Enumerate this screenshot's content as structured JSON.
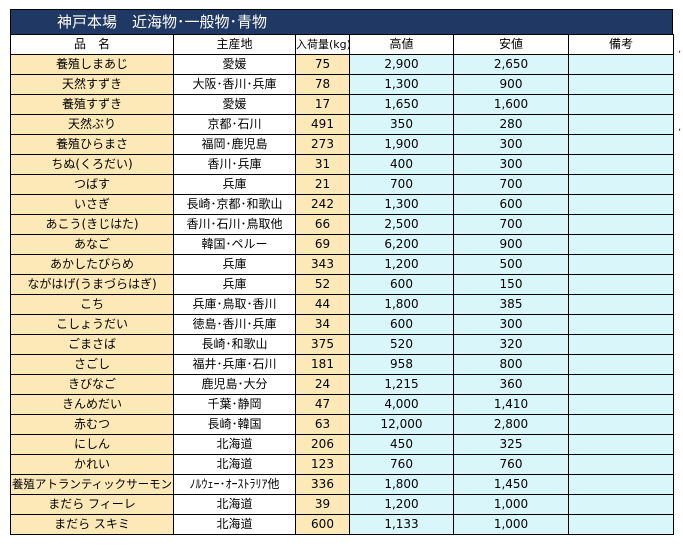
{
  "title": "神戸本場　近海物･一般物･青物",
  "headers": {
    "name": "品　名",
    "origin": "主産地",
    "qty": "入荷量(kg)",
    "high": "高値",
    "low": "安値",
    "note": "備考"
  },
  "rows": [
    {
      "name": "養殖しまあじ",
      "origin": "愛媛",
      "qty": "75",
      "high": "2,900",
      "low": "2,650",
      "note": ""
    },
    {
      "name": "天然すずき",
      "origin": "大阪･香川･兵庫",
      "qty": "78",
      "high": "1,300",
      "low": "900",
      "note": ""
    },
    {
      "name": "養殖すずき",
      "origin": "愛媛",
      "qty": "17",
      "high": "1,650",
      "low": "1,600",
      "note": ""
    },
    {
      "name": "天然ぶり",
      "origin": "京都･石川",
      "qty": "491",
      "high": "350",
      "low": "280",
      "note": ""
    },
    {
      "name": "養殖ひらまさ",
      "origin": "福岡･鹿児島",
      "qty": "273",
      "high": "1,900",
      "low": "300",
      "note": ""
    },
    {
      "name": "ちぬ(くろだい)",
      "origin": "香川･兵庫",
      "qty": "31",
      "high": "400",
      "low": "300",
      "note": ""
    },
    {
      "name": "つばす",
      "origin": "兵庫",
      "qty": "21",
      "high": "700",
      "low": "700",
      "note": ""
    },
    {
      "name": "いさぎ",
      "origin": "長崎･京都･和歌山",
      "qty": "242",
      "high": "1,300",
      "low": "600",
      "note": ""
    },
    {
      "name": "あこう(きじはた)",
      "origin": "香川･石川･鳥取他",
      "qty": "66",
      "high": "2,500",
      "low": "700",
      "note": ""
    },
    {
      "name": "あなご",
      "origin": "韓国･ペルー",
      "qty": "69",
      "high": "6,200",
      "low": "900",
      "note": ""
    },
    {
      "name": "あかしたびらめ",
      "origin": "兵庫",
      "qty": "343",
      "high": "1,200",
      "low": "500",
      "note": ""
    },
    {
      "name": "ながはげ(うまづらはぎ)",
      "origin": "兵庫",
      "qty": "52",
      "high": "600",
      "low": "150",
      "note": ""
    },
    {
      "name": "こち",
      "origin": "兵庫･鳥取･香川",
      "qty": "44",
      "high": "1,800",
      "low": "385",
      "note": ""
    },
    {
      "name": "こしょうだい",
      "origin": "徳島･香川･兵庫",
      "qty": "34",
      "high": "600",
      "low": "300",
      "note": ""
    },
    {
      "name": "ごまさば",
      "origin": "長崎･和歌山",
      "qty": "375",
      "high": "520",
      "low": "320",
      "note": ""
    },
    {
      "name": "さごし",
      "origin": "福井･兵庫･石川",
      "qty": "181",
      "high": "958",
      "low": "800",
      "note": ""
    },
    {
      "name": "きびなご",
      "origin": "鹿児島･大分",
      "qty": "24",
      "high": "1,215",
      "low": "360",
      "note": ""
    },
    {
      "name": "きんめだい",
      "origin": "千葉･静岡",
      "qty": "47",
      "high": "4,000",
      "low": "1,410",
      "note": ""
    },
    {
      "name": "赤むつ",
      "origin": "長崎･韓国",
      "qty": "63",
      "high": "12,000",
      "low": "2,800",
      "note": ""
    },
    {
      "name": "にしん",
      "origin": "北海道",
      "qty": "206",
      "high": "450",
      "low": "325",
      "note": ""
    },
    {
      "name": "かれい",
      "origin": "北海道",
      "qty": "123",
      "high": "760",
      "low": "760",
      "note": ""
    },
    {
      "name": "養殖アトランティックサーモン",
      "origin": "ﾉﾙｳｪｰ･ｵｰｽﾄﾗﾘｱ他",
      "qty": "336",
      "high": "1,800",
      "low": "1,450",
      "note": ""
    },
    {
      "name": "まだら フィーレ",
      "origin": "北海道",
      "qty": "39",
      "high": "1,200",
      "low": "1,000",
      "note": ""
    },
    {
      "name": "まだら スキミ",
      "origin": "北海道",
      "qty": "600",
      "high": "1,133",
      "low": "1,000",
      "note": ""
    }
  ],
  "colors": {
    "title_bg": "#1f3864",
    "name_bg": "#fde9b8",
    "price_bg": "#d9f7fb"
  }
}
